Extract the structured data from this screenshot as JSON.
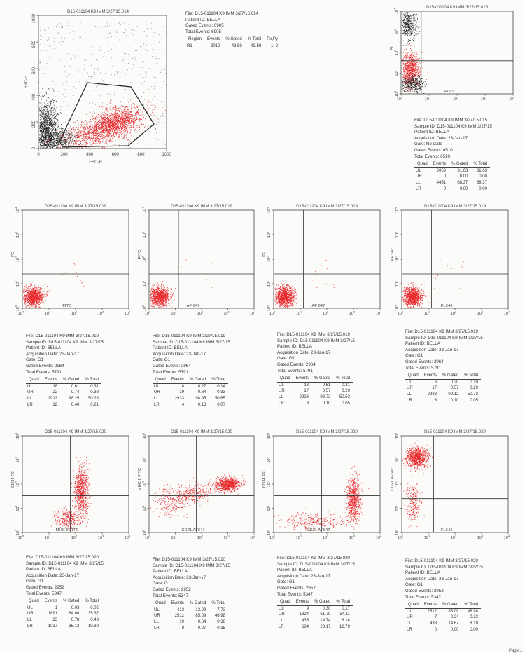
{
  "main_plot": {
    "title": "D15-011104 K9 IMM 3/27/15.014",
    "xlabel": "FSC-H",
    "ylabel": "SSC-H",
    "xticks": [
      "0",
      "200",
      "400",
      "600",
      "800",
      "1000"
    ],
    "yticks": [
      "0",
      "200",
      "400",
      "600",
      "800",
      "1000"
    ],
    "info": [
      "File: D15-011104 K9 IMM 3/27/15.014",
      "Patient ID: BELLA",
      "Gated Events: 6905",
      "Total Events: 6905"
    ],
    "region_headers": [
      "Region",
      "Events",
      "% Gated",
      "% Total",
      "Px,Py"
    ],
    "region_rows": [
      [
        "R1",
        "3010",
        "43.59",
        "43.59",
        "1, 2"
      ]
    ]
  },
  "plots": [
    {
      "id": "p015",
      "title": "D15-011104 K9 IMM 3/27/15.015",
      "xlabel": "CELLS",
      "ylabel": "PI",
      "info": [
        "File: D15-011104 K9 IMM 3/27/15.015",
        "Sample ID: D15-011104 K9 IMM 3/27/15",
        "Patient ID: BELLA",
        "Acquisition Date: 23-Jan-17",
        "Gate: No Gate",
        "Gated Events: 6510",
        "Total Events: 6510"
      ],
      "rows": [
        [
          "UL",
          "2059",
          "31.63",
          "31.63"
        ],
        [
          "UR",
          "0",
          "0.00",
          "0.00"
        ],
        [
          "LL",
          "4451",
          "68.37",
          "68.37"
        ],
        [
          "LR",
          "0",
          "0.00",
          "0.00"
        ]
      ]
    },
    {
      "id": "p019a",
      "title": "D15-011104 K9 IMM 3/27/15.019",
      "xlabel": "FITC",
      "ylabel": "PE",
      "info": [
        "File: D15-011104 K9 IMM 3/27/15.019",
        "Sample ID: D15-011104 K9 IMM 3/27/15",
        "Patient ID: BELLA",
        "Acquisition Date: 23-Jan-17",
        "Gate: G1",
        "Gated Events: 2964",
        "Total Events: 5791"
      ],
      "rows": [
        [
          "UL",
          "18",
          "0.61",
          "0.31"
        ],
        [
          "UR",
          "22",
          "0.74",
          "0.38"
        ],
        [
          "LL",
          "2912",
          "98.25",
          "50.28"
        ],
        [
          "LR",
          "12",
          "0.40",
          "0.21"
        ]
      ]
    },
    {
      "id": "p019b",
      "title": "D15-011104 K9 IMM 3/27/15.019",
      "xlabel": "AF 647",
      "ylabel": "FITC",
      "info": [
        "File: D15-011104 K9 IMM 3/27/15.019",
        "Sample ID: D15-011104 K9 IMM 3/27/15",
        "Patient ID: BELLA",
        "Acquisition Date: 23-Jan-17",
        "Gate: G1",
        "Gated Events: 2964",
        "Total Events: 5791"
      ],
      "rows": [
        [
          "UL",
          "8",
          "0.27",
          "0.14"
        ],
        [
          "UR",
          "19",
          "0.64",
          "0.33"
        ],
        [
          "LL",
          "2933",
          "98.95",
          "50.65"
        ],
        [
          "LR",
          "4",
          "0.13",
          "0.07"
        ]
      ]
    },
    {
      "id": "p019c",
      "title": "D15-011104 K9 IMM 3/27/15.019",
      "xlabel": "AF 647",
      "ylabel": "PE",
      "info": [
        "File: D15-011104 K9 IMM 3/27/15.019",
        "Sample ID: D15-011104 K9 IMM 3/27/15",
        "Patient ID: BELLA",
        "Acquisition Date: 23-Jan-17",
        "Gate: G1",
        "Gated Events: 2964",
        "Total Events: 5791"
      ],
      "rows": [
        [
          "UL",
          "18",
          "0.61",
          "0.31"
        ],
        [
          "UR",
          "17",
          "0.57",
          "0.29"
        ],
        [
          "LL",
          "2926",
          "98.72",
          "50.53"
        ],
        [
          "LR",
          "3",
          "0.10",
          "0.05"
        ]
      ]
    },
    {
      "id": "p019d",
      "title": "D15-011104 K9 IMM 3/27/15.019",
      "xlabel": "FL3-H",
      "ylabel": "AF 647",
      "info": [
        "File: D15-011104 K9 IMM 3/27/15.019",
        "Sample ID: D15-011104 K9 IMM 3/27/15",
        "Patient ID: BELLA",
        "Acquisition Date: 23-Jan-17",
        "Gate: G1",
        "Gated Events: 2964",
        "Total Events: 5791"
      ],
      "rows": [
        [
          "UL",
          "6",
          "0.20",
          "0.10"
        ],
        [
          "UR",
          "17",
          "0.57",
          "0.29"
        ],
        [
          "LL",
          "2938",
          "99.12",
          "50.73"
        ],
        [
          "LR",
          "3",
          "0.10",
          "0.05"
        ]
      ]
    },
    {
      "id": "p020a",
      "title": "D15-011104 K9 IMM 3/27/15.020",
      "xlabel": "MHC II FITC",
      "ylabel": "CD34 PE",
      "info": [
        "File: D15-011104 K9 IMM 3/27/15.020",
        "Sample ID: D15-011104 K9 IMM 3/27/15",
        "Patient ID: BELLA",
        "Acquisition Date: 23-Jan-17",
        "Gate: G1",
        "Gated Events: 2952",
        "Total Events: 5347"
      ],
      "rows": [
        [
          "UL",
          "1",
          "0.03",
          "0.02"
        ],
        [
          "UR",
          "1891",
          "64.06",
          "35.37"
        ],
        [
          "LL",
          "23",
          "0.78",
          "0.43"
        ],
        [
          "LR",
          "1037",
          "35.13",
          "19.39"
        ]
      ]
    },
    {
      "id": "p020b",
      "title": "D15-011104 K9 IMM 3/27/15.020",
      "xlabel": "CD21 AF647",
      "ylabel": "MHC II FITC",
      "info": [
        "File: D15-011104 K9 IMM 3/27/15.020",
        "Sample ID: D15-011104 K9 IMM 3/27/15",
        "Patient ID: BELLA",
        "Acquisition Date: 23-Jan-17",
        "Gate: G1",
        "Gated Events: 2952",
        "Total Events: 5347"
      ],
      "rows": [
        [
          "UL",
          "413",
          "13.99",
          "7.72"
        ],
        [
          "UR",
          "2512",
          "85.09",
          "46.98"
        ],
        [
          "LL",
          "19",
          "0.64",
          "0.36"
        ],
        [
          "LR",
          "8",
          "0.27",
          "0.15"
        ]
      ]
    },
    {
      "id": "p020c",
      "title": "D15-011104 K9 IMM 3/27/15.020",
      "xlabel": "CD21 AF647",
      "ylabel": "CD34 PE",
      "info": [
        "File: D15-011104 K9 IMM 3/27/15.020",
        "Sample ID: D15-011104 K9 IMM 3/27/15",
        "Patient ID: BELLA",
        "Acquisition Date: 23-Jan-17",
        "Gate: G1",
        "Gated Events: 2952",
        "Total Events: 5347"
      ],
      "rows": [
        [
          "UL",
          "9",
          "0.30",
          "0.17"
        ],
        [
          "UR",
          "1824",
          "61.79",
          "34.11"
        ],
        [
          "LL",
          "435",
          "14.74",
          "8.14"
        ],
        [
          "LR",
          "684",
          "23.17",
          "12.79"
        ]
      ]
    },
    {
      "id": "p020d",
      "title": "D15-011104 K9 IMM 3/27/15.020",
      "xlabel": "FL3-H",
      "ylabel": "CD21 AF647",
      "info": [
        "File: D15-011104 K9 IMM 3/27/15.020",
        "Sample ID: D15-011104 K9 IMM 3/27/15",
        "Patient ID: BELLA",
        "Acquisition Date: 23-Jan-17",
        "Gate: G1",
        "Gated Events: 2952",
        "Total Events: 5347"
      ],
      "rows": [
        [
          "UL",
          "2512",
          "85.09",
          "46.98"
        ],
        [
          "UR",
          "7",
          "0.24",
          "0.13"
        ],
        [
          "LL",
          "433",
          "14.67",
          "8.10"
        ],
        [
          "LR",
          "0",
          "0.00",
          "0.00"
        ]
      ]
    }
  ],
  "quad_headers": [
    "Quad",
    "Events",
    "% Gated",
    "% Total"
  ],
  "log_ticks": [
    "10",
    "10",
    "10",
    "10",
    "10"
  ],
  "log_exps": [
    "0",
    "1",
    "2",
    "3",
    "4"
  ],
  "footer": "Page 1",
  "colors": {
    "gated": "#e8272b",
    "ungated": "#222222",
    "axis": "#444444"
  }
}
